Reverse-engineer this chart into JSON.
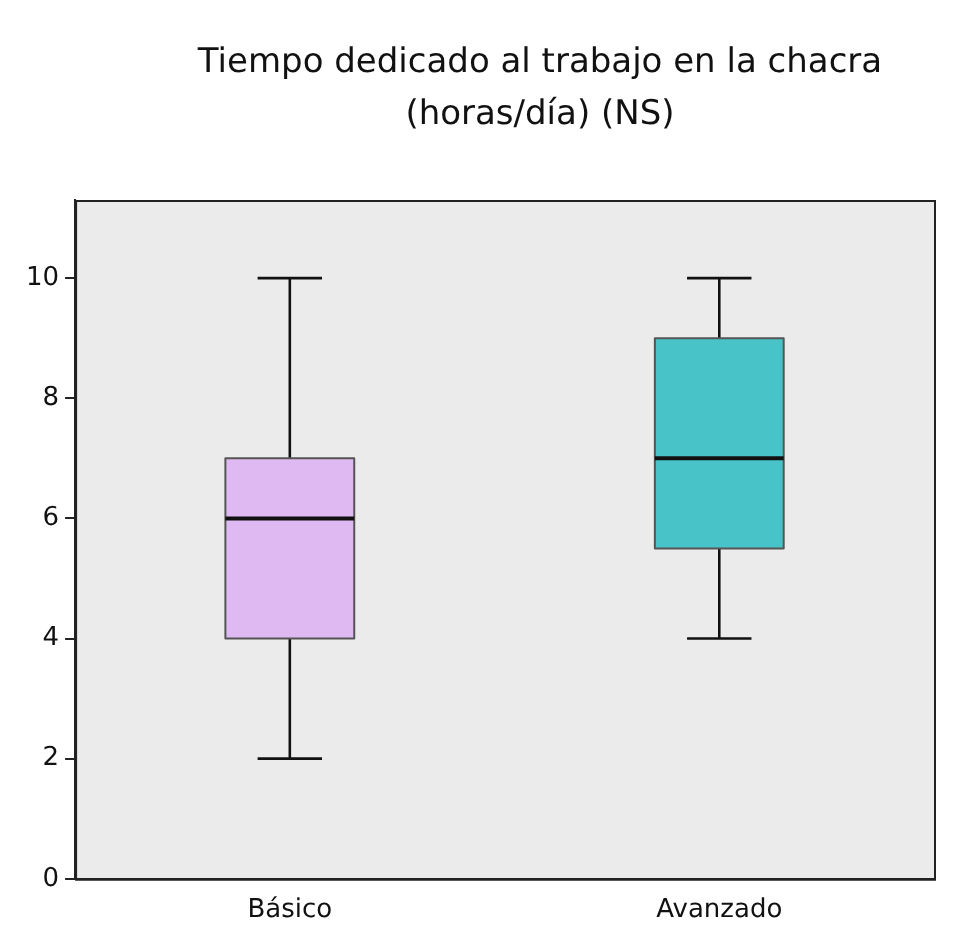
{
  "chart_data": {
    "type": "box",
    "title": "Tiempo dedicado al trabajo en la chacra (horas/día) (NS)",
    "categories": [
      "Básico",
      "Avanzado"
    ],
    "colors": [
      "#dfb9f1",
      "#48c4c8"
    ],
    "boxes": [
      {
        "low": 2,
        "q1": 4,
        "median": 6,
        "q3": 7,
        "high": 10
      },
      {
        "low": 4,
        "q1": 5.5,
        "median": 7,
        "q3": 9,
        "high": 10
      }
    ],
    "ylim": [
      0,
      11.3
    ],
    "yticks": [
      0,
      2,
      4,
      6,
      8,
      10
    ],
    "grid": false,
    "legend": false
  }
}
